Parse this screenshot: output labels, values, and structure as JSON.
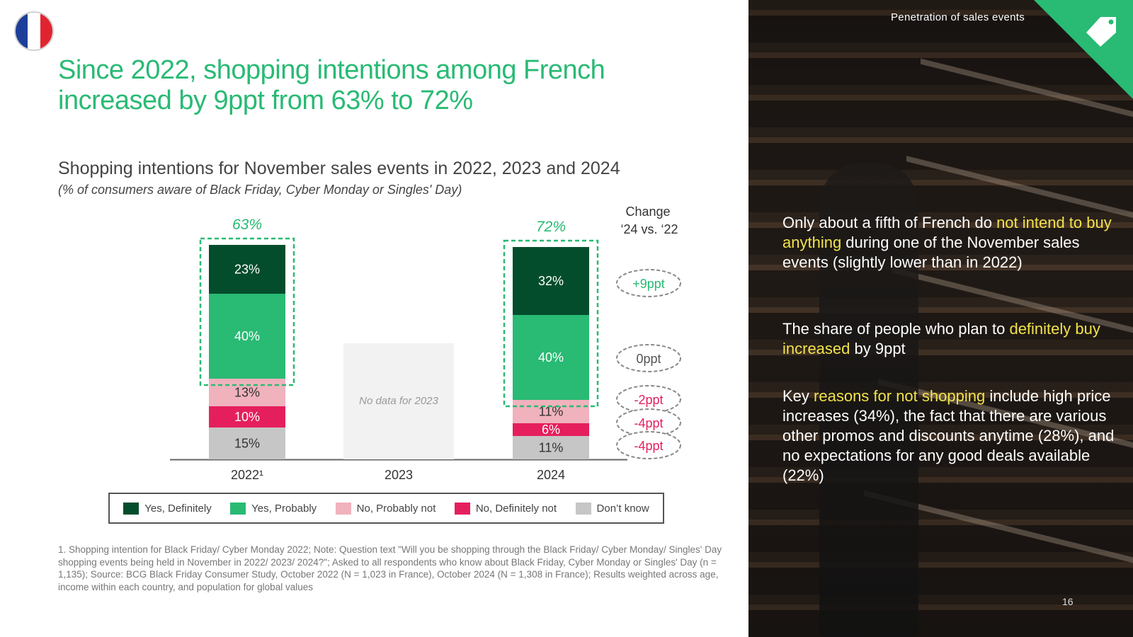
{
  "header": {
    "title": "Since 2022, shopping intentions among French increased by 9ppt from 63% to 72%",
    "section_label": "Penetration of sales events"
  },
  "chart": {
    "subtitle": "Shopping intentions for November sales events in 2022, 2023 and 2024",
    "subnote": "(% of consumers aware of Black Friday, Cyber Monday or Singles' Day)",
    "change_header_line1": "Change",
    "change_header_line2": "‘24 vs. ‘22",
    "no_data_text": "No data for 2023",
    "total_labels": {
      "2022": "63%",
      "2024": "72%"
    },
    "changes": [
      "+9ppt",
      "0ppt",
      "-2ppt",
      "-4ppt",
      "-4ppt"
    ]
  },
  "chart_data": {
    "type": "bar",
    "stacked": true,
    "categories": [
      "2022¹",
      "2023",
      "2024"
    ],
    "series": [
      {
        "name": "Yes, Definitely",
        "color": "#034d2c",
        "values": [
          23,
          null,
          32
        ]
      },
      {
        "name": "Yes, Probably",
        "color": "#29ba74",
        "values": [
          40,
          null,
          40
        ]
      },
      {
        "name": "No, Probably not",
        "color": "#f0b2bd",
        "values": [
          13,
          null,
          11
        ]
      },
      {
        "name": "No, Definitely not",
        "color": "#e51f5d",
        "values": [
          10,
          null,
          6
        ]
      },
      {
        "name": "Don't know",
        "color": "#c6c6c6",
        "values": [
          15,
          null,
          11
        ]
      }
    ],
    "legend_position": "bottom"
  },
  "legend": [
    {
      "label": "Yes, Definitely",
      "color": "#034d2c"
    },
    {
      "label": "Yes, Probably",
      "color": "#29ba74"
    },
    {
      "label": "No, Probably not",
      "color": "#f0b2bd"
    },
    {
      "label": "No, Definitely not",
      "color": "#e51f5d"
    },
    {
      "label": "Don’t know",
      "color": "#c6c6c6"
    }
  ],
  "footnote": "1. Shopping intention for Black Friday/ Cyber Monday 2022; Note: Question text \"Will you be shopping through the Black Friday/ Cyber Monday/ Singles' Day shopping events being held in November in 2022/ 2023/ 2024?\"; Asked to all respondents who know about Black Friday, Cyber Monday or Singles' Day (n = 1,135); Source: BCG Black Friday Consumer Study, October 2022 (N = 1,023 in France), October 2024 (N = 1,308 in France); Results weighted across age, income within each country, and population for global values",
  "insights": {
    "b1_pre": "Only about a fifth of French do ",
    "b1_hl": "not intend to buy anything",
    "b1_post": " during one of the November sales events (slightly lower than in 2022)",
    "b2_pre": "The share of people who plan to ",
    "b2_hl": "definitely buy increased",
    "b2_post": " by 9ppt",
    "b3_pre": "Key ",
    "b3_hl": "reasons for not shopping",
    "b3_post": " include high price increases (34%), the fact that there are various other promos and discounts anytime (28%), and no expectations for any good deals available (22%)"
  },
  "page_number": "16",
  "colors": {
    "accent": "#29ba74",
    "highlight": "#f2e24a"
  }
}
